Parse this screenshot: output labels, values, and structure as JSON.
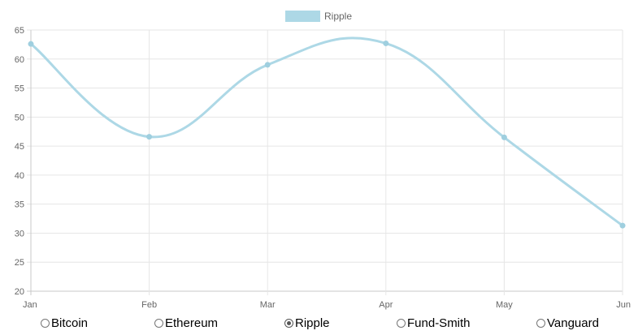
{
  "chart_data": {
    "type": "line",
    "categories": [
      "Jan",
      "Feb",
      "Mar",
      "Apr",
      "May",
      "Jun"
    ],
    "series": [
      {
        "name": "Ripple",
        "values": [
          62.6,
          46.6,
          59.0,
          62.7,
          46.5,
          31.3
        ],
        "color": "#add8e6"
      }
    ],
    "ylim": [
      20,
      65
    ],
    "yticks": [
      20,
      25,
      30,
      35,
      40,
      45,
      50,
      55,
      60,
      65
    ],
    "grid": true,
    "legend": "top-center",
    "smooth": true
  },
  "selector": {
    "options": [
      {
        "label": "Bitcoin",
        "checked": false
      },
      {
        "label": "Ethereum",
        "checked": false
      },
      {
        "label": "Ripple",
        "checked": true
      },
      {
        "label": "Fund-Smith",
        "checked": false
      },
      {
        "label": "Vanguard",
        "checked": false
      }
    ]
  },
  "colors": {
    "grid": "#e6e6e6",
    "axis": "#c8c8c8",
    "text": "#666666"
  }
}
